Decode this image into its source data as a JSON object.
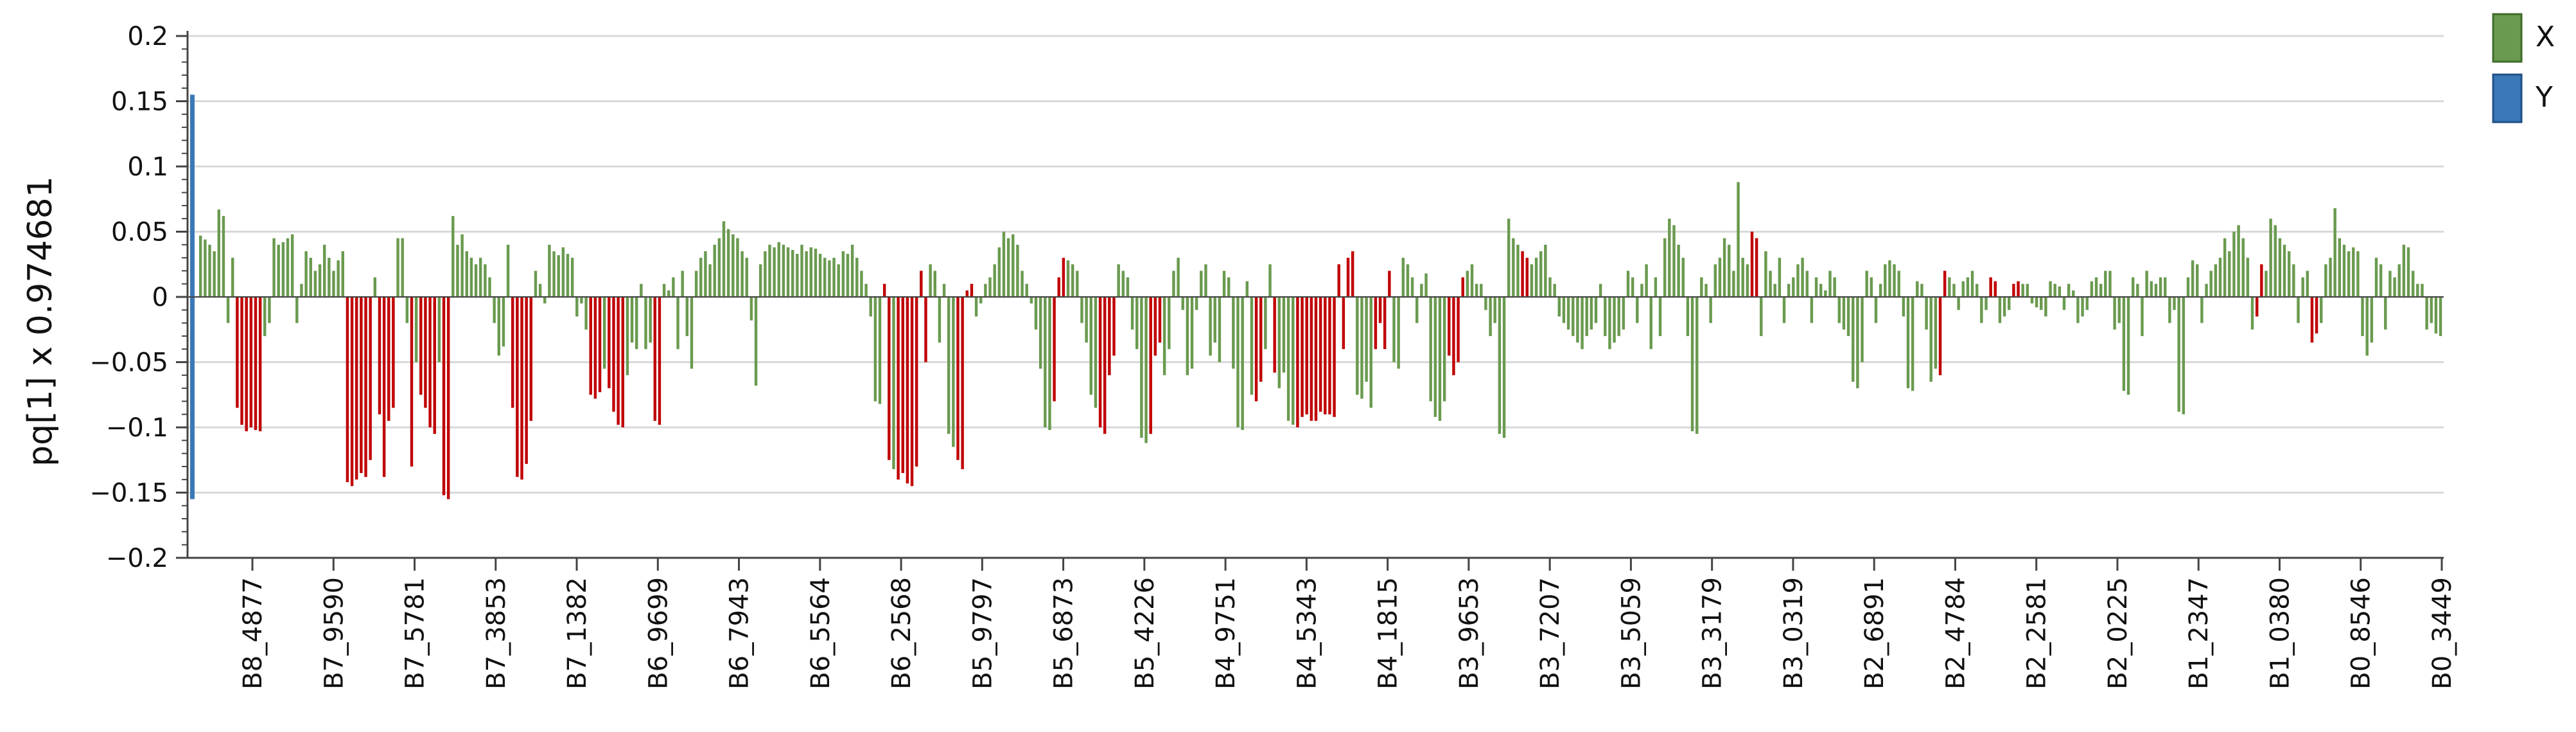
{
  "chart_data": {
    "type": "bar",
    "ylabel": "pq[1] x 0.974681",
    "xlabel": "",
    "ylim": [
      -0.2,
      0.2
    ],
    "yticks": [
      0.2,
      0.15,
      0.1,
      0.05,
      0,
      -0.05,
      -0.1,
      -0.15,
      -0.2
    ],
    "ytick_labels": [
      "0.2",
      "0.15",
      "0.1",
      "0.05",
      "0",
      "−0.05",
      "−0.1",
      "−0.15",
      "−0.2"
    ],
    "xtick_labels": [
      "B8_4877",
      "B7_9590",
      "B7_5781",
      "B7_3853",
      "B7_1382",
      "B6_9699",
      "B6_7943",
      "B6_5564",
      "B6_2568",
      "B5_9797",
      "B5_6873",
      "B5_4226",
      "B4_9751",
      "B4_5343",
      "B4_1815",
      "B3_9653",
      "B3_7207",
      "B3_5059",
      "B3_3179",
      "B3_0319",
      "B2_6891",
      "B2_4784",
      "B2_2581",
      "B2_0225",
      "B1_2347",
      "B1_0380",
      "B0_8546",
      "B0_3449"
    ],
    "grid": true,
    "legend_position": "top-right",
    "colors": {
      "X": "#6a9a4f",
      "Y": "#3a78b8",
      "highlight": "#c00000"
    },
    "series": [
      {
        "name": "Y",
        "values": [
          0.155,
          -0.155
        ],
        "note_positions": "first category only"
      },
      {
        "name": "X",
        "values": [
          0.047,
          0.044,
          0.04,
          0.035,
          0.067,
          0.062,
          -0.02,
          0.03,
          -0.085,
          -0.098,
          -0.103,
          -0.1,
          -0.102,
          -0.103,
          -0.03,
          -0.02,
          0.045,
          0.04,
          0.042,
          0.045,
          0.048,
          -0.02,
          0.01,
          0.035,
          0.03,
          0.02,
          0.025,
          0.04,
          0.03,
          0.02,
          0.028,
          0.035,
          -0.142,
          -0.145,
          -0.14,
          -0.135,
          -0.138,
          -0.125,
          0.015,
          -0.09,
          -0.138,
          -0.095,
          -0.085,
          0.045,
          0.045,
          -0.02,
          -0.13,
          -0.05,
          -0.075,
          -0.085,
          -0.1,
          -0.105,
          -0.05,
          -0.152,
          -0.155,
          0.062,
          0.04,
          0.048,
          0.035,
          0.03,
          0.025,
          0.03,
          0.025,
          0.015,
          -0.02,
          -0.045,
          -0.038,
          0.04,
          -0.085,
          -0.138,
          -0.14,
          -0.128,
          -0.095,
          0.02,
          0.01,
          -0.005,
          0.04,
          0.035,
          0.032,
          0.038,
          0.033,
          0.03,
          -0.015,
          -0.005,
          -0.025,
          -0.075,
          -0.078,
          -0.073,
          -0.055,
          -0.07,
          -0.088,
          -0.098,
          -0.1,
          -0.06,
          -0.035,
          -0.04,
          0.01,
          -0.04,
          -0.035,
          -0.095,
          -0.098,
          0.01,
          0.005,
          0.015,
          -0.04,
          0.02,
          -0.03,
          -0.055,
          0.02,
          0.03,
          0.035,
          0.025,
          0.04,
          0.045,
          0.058,
          0.052,
          0.048,
          0.045,
          0.035,
          0.03,
          -0.018,
          -0.068,
          0.025,
          0.035,
          0.04,
          0.038,
          0.042,
          0.04,
          0.038,
          0.036,
          0.033,
          0.04,
          0.035,
          0.038,
          0.037,
          0.033,
          0.03,
          0.028,
          0.03,
          0.025,
          0.035,
          0.033,
          0.04,
          0.03,
          0.02,
          0.01,
          -0.015,
          -0.08,
          -0.082,
          0.01,
          -0.125,
          -0.132,
          -0.14,
          -0.135,
          -0.143,
          -0.145,
          -0.13,
          0.02,
          -0.05,
          0.025,
          0.02,
          -0.035,
          0.01,
          -0.105,
          -0.115,
          -0.125,
          -0.132,
          0.005,
          0.01,
          -0.015,
          -0.005,
          0.01,
          0.015,
          0.025,
          0.038,
          0.05,
          0.045,
          0.048,
          0.04,
          0.02,
          0.01,
          -0.005,
          -0.025,
          -0.055,
          -0.1,
          -0.102,
          -0.08,
          0.015,
          0.03,
          0.028,
          0.025,
          0.02,
          -0.02,
          -0.035,
          -0.075,
          -0.085,
          -0.1,
          -0.105,
          -0.06,
          -0.045,
          0.025,
          0.02,
          0.015,
          -0.025,
          -0.04,
          -0.108,
          -0.112,
          -0.105,
          -0.045,
          -0.035,
          -0.06,
          -0.04,
          0.02,
          0.03,
          -0.01,
          -0.06,
          -0.055,
          -0.01,
          0.02,
          0.025,
          -0.045,
          -0.035,
          -0.05,
          0.02,
          0.015,
          -0.055,
          -0.1,
          -0.102,
          0.012,
          -0.075,
          -0.08,
          -0.065,
          -0.04,
          0.025,
          -0.058,
          -0.07,
          -0.058,
          -0.095,
          -0.098,
          -0.1,
          -0.092,
          -0.09,
          -0.095,
          -0.095,
          -0.088,
          -0.09,
          -0.09,
          -0.092,
          0.025,
          -0.04,
          0.03,
          0.035,
          -0.075,
          -0.078,
          -0.065,
          -0.085,
          -0.04,
          -0.02,
          -0.04,
          0.02,
          -0.05,
          -0.055,
          0.03,
          0.025,
          0.015,
          -0.02,
          0.01,
          0.018,
          -0.08,
          -0.092,
          -0.095,
          -0.08,
          -0.045,
          -0.06,
          -0.05,
          0.015,
          0.02,
          0.025,
          0.01,
          0.01,
          -0.01,
          -0.03,
          -0.02,
          -0.105,
          -0.108,
          0.06,
          0.045,
          0.04,
          0.035,
          0.03,
          0.025,
          0.03,
          0.035,
          0.04,
          0.015,
          0.01,
          -0.015,
          -0.02,
          -0.025,
          -0.03,
          -0.035,
          -0.04,
          -0.03,
          -0.025,
          -0.02,
          0.01,
          -0.03,
          -0.04,
          -0.035,
          -0.03,
          -0.025,
          0.02,
          0.015,
          -0.02,
          0.01,
          0.025,
          -0.04,
          0.015,
          -0.03,
          0.045,
          0.06,
          0.055,
          0.04,
          0.03,
          -0.03,
          -0.103,
          -0.105,
          0.015,
          0.01,
          -0.02,
          0.025,
          0.03,
          0.045,
          0.04,
          0.02,
          0.088,
          0.03,
          0.025,
          0.05,
          0.045,
          -0.03,
          0.035,
          0.02,
          0.01,
          0.03,
          -0.02,
          0.01,
          0.015,
          0.025,
          0.03,
          0.02,
          -0.02,
          0.015,
          0.01,
          0.005,
          0.02,
          0.015,
          -0.02,
          -0.025,
          -0.03,
          -0.065,
          -0.07,
          -0.05,
          0.02,
          0.015,
          -0.02,
          0.01,
          0.025,
          0.028,
          0.025,
          0.02,
          -0.015,
          -0.07,
          -0.072,
          0.012,
          0.01,
          -0.025,
          -0.065,
          -0.055,
          -0.06,
          0.02,
          0.015,
          0.01,
          -0.01,
          0.012,
          0.015,
          0.02,
          0.01,
          -0.02,
          -0.01,
          0.015,
          0.012,
          -0.02,
          -0.015,
          -0.01,
          0.01,
          0.012,
          0.01,
          0.01,
          -0.005,
          -0.008,
          -0.01,
          -0.015,
          0.012,
          0.01,
          0.008,
          -0.01,
          0.01,
          0.005,
          -0.02,
          -0.015,
          -0.01,
          0.012,
          0.015,
          0.01,
          0.02,
          0.02,
          -0.025,
          -0.02,
          -0.072,
          -0.075,
          0.015,
          0.01,
          -0.03,
          0.02,
          0.012,
          0.01,
          0.015,
          0.015,
          -0.02,
          -0.01,
          -0.088,
          -0.09,
          0.015,
          0.028,
          0.025,
          -0.02,
          0.01,
          0.02,
          0.025,
          0.03,
          0.045,
          0.035,
          0.05,
          0.055,
          0.045,
          0.03,
          -0.025,
          -0.015,
          0.025,
          0.02,
          0.06,
          0.055,
          0.045,
          0.04,
          0.035,
          0.025,
          -0.02,
          0.015,
          0.02,
          -0.035,
          -0.028,
          -0.02,
          0.025,
          0.03,
          0.068,
          0.045,
          0.04,
          0.035,
          0.038,
          0.035,
          -0.03,
          -0.045,
          -0.035,
          0.03,
          0.025,
          -0.025,
          0.02,
          0.015,
          0.025,
          0.04,
          0.038,
          0.02,
          0.01,
          0.01,
          -0.025,
          -0.02,
          -0.028,
          -0.03
        ],
        "highlight": [
          0,
          0,
          0,
          0,
          0,
          0,
          0,
          0,
          1,
          1,
          1,
          1,
          1,
          1,
          0,
          0,
          0,
          0,
          0,
          0,
          0,
          0,
          0,
          0,
          0,
          0,
          0,
          0,
          0,
          0,
          0,
          0,
          1,
          1,
          1,
          1,
          1,
          1,
          0,
          1,
          1,
          1,
          1,
          0,
          0,
          0,
          1,
          0,
          1,
          1,
          1,
          1,
          0,
          1,
          1,
          0,
          0,
          0,
          0,
          0,
          0,
          0,
          0,
          0,
          0,
          0,
          0,
          0,
          1,
          1,
          1,
          1,
          1,
          0,
          0,
          0,
          0,
          0,
          0,
          0,
          0,
          0,
          0,
          0,
          0,
          1,
          1,
          1,
          0,
          1,
          1,
          1,
          1,
          0,
          0,
          0,
          0,
          0,
          0,
          1,
          1,
          0,
          0,
          0,
          0,
          0,
          0,
          0,
          0,
          0,
          0,
          0,
          0,
          0,
          0,
          0,
          0,
          0,
          0,
          0,
          0,
          0,
          0,
          0,
          0,
          0,
          0,
          0,
          0,
          0,
          0,
          0,
          0,
          0,
          0,
          0,
          0,
          0,
          0,
          0,
          0,
          0,
          0,
          0,
          0,
          0,
          0,
          0,
          0,
          1,
          1,
          0,
          1,
          1,
          1,
          1,
          1,
          1,
          1,
          0,
          0,
          0,
          0,
          0,
          0,
          1,
          1,
          1,
          1,
          0,
          0,
          0,
          0,
          0,
          0,
          0,
          0,
          0,
          0,
          0,
          0,
          0,
          0,
          0,
          0,
          0,
          1,
          1,
          1,
          0,
          0,
          0,
          0,
          0,
          0,
          0,
          1,
          1,
          1,
          1,
          0,
          0,
          0,
          0,
          0,
          0,
          0,
          1,
          1,
          1,
          0,
          0,
          0,
          0,
          0,
          0,
          0,
          0,
          0,
          0,
          0,
          0,
          0,
          0,
          0,
          0,
          0,
          0,
          0,
          0,
          1,
          1,
          0,
          0,
          1,
          0,
          0,
          0,
          0,
          1,
          1,
          1,
          1,
          1,
          1,
          1,
          1,
          1,
          1,
          1,
          1,
          1,
          0,
          0,
          0,
          0,
          1,
          1,
          1,
          1,
          0,
          0,
          0,
          0,
          0,
          0,
          0,
          0,
          0,
          0,
          0,
          0,
          1,
          1,
          1,
          1,
          0,
          0,
          0,
          0,
          0,
          0,
          0,
          0,
          0,
          0,
          0,
          0,
          1,
          1,
          0,
          0,
          0,
          0,
          0,
          0,
          0,
          0,
          0,
          0,
          0,
          0,
          0,
          0,
          0,
          0,
          0,
          0,
          0,
          0,
          0,
          0,
          0,
          0,
          0,
          0,
          0,
          0,
          0,
          0,
          0,
          0,
          0,
          0,
          0,
          0,
          0,
          0,
          0,
          0,
          0,
          0,
          0,
          0,
          0,
          0,
          0,
          0,
          1,
          1,
          0,
          0,
          0,
          0,
          0,
          0,
          0,
          0,
          0,
          0,
          0,
          0,
          0,
          0,
          0,
          0,
          0,
          0,
          0,
          0,
          0,
          0,
          0,
          0,
          0,
          0,
          0,
          0,
          0,
          0,
          0,
          0,
          0,
          0,
          0,
          0,
          0,
          0,
          0,
          1,
          1,
          0,
          0,
          0,
          0,
          0,
          0,
          0,
          0,
          0,
          1,
          1,
          0,
          0,
          0,
          1,
          1,
          0,
          0,
          0,
          0,
          0,
          0,
          0,
          0,
          0,
          0,
          0,
          0,
          0,
          0,
          0,
          0,
          0,
          0,
          0,
          0,
          0,
          0,
          0,
          0,
          0,
          0,
          0,
          0,
          0,
          0,
          0,
          0,
          0,
          0,
          0,
          0,
          0,
          0,
          0,
          0,
          0,
          0,
          0,
          0,
          0,
          0,
          0,
          0,
          0,
          0,
          0,
          1,
          1,
          0,
          0,
          0,
          0,
          0,
          0,
          0,
          0,
          0,
          0,
          1,
          1,
          0,
          0,
          0,
          0,
          0,
          0,
          0,
          0,
          0,
          0,
          0,
          0,
          0,
          0,
          0,
          0,
          0,
          0,
          0,
          0,
          0,
          0,
          0,
          0,
          0,
          0,
          0,
          0,
          0,
          0,
          0,
          0,
          0,
          0,
          0,
          0,
          0,
          0,
          0,
          0,
          0,
          0,
          0,
          0,
          0,
          0,
          0,
          0,
          0,
          0,
          0,
          0,
          0,
          0,
          0,
          0,
          0,
          0,
          0,
          0
        ]
      }
    ]
  }
}
